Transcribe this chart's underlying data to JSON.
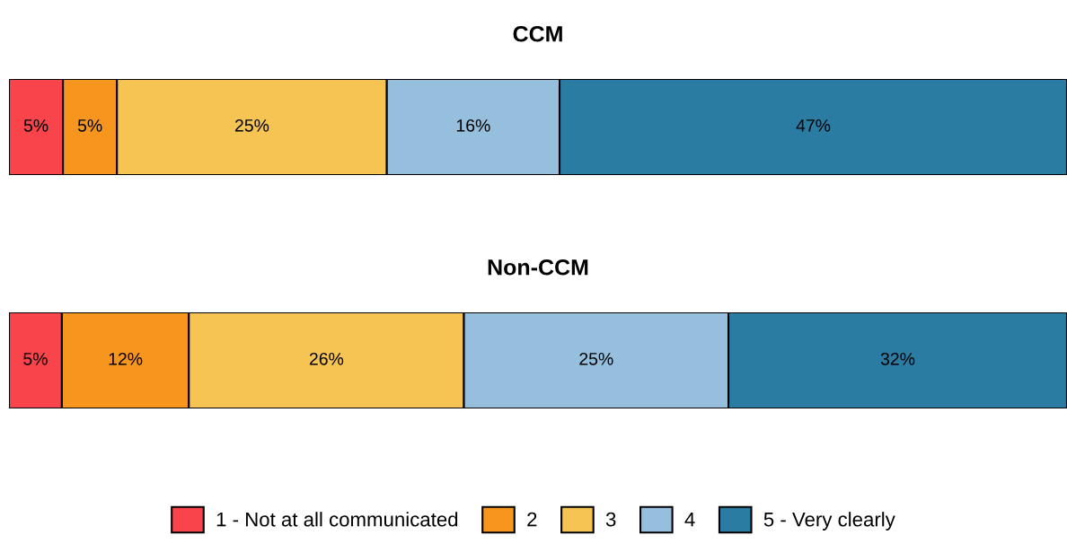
{
  "chart_data": [
    {
      "type": "bar",
      "title": "CCM",
      "stacked": true,
      "orientation": "horizontal",
      "categories": [
        null
      ],
      "tick_labels": false,
      "series": [
        {
          "color": "#f8444a",
          "values": [
            5
          ],
          "value_labels": [
            "5%"
          ]
        },
        {
          "color": "#f7961f",
          "values": [
            5
          ],
          "value_labels": [
            "5%"
          ]
        },
        {
          "color": "#f6c453",
          "values": [
            25
          ],
          "value_labels": [
            "25%"
          ]
        },
        {
          "color": "#95bfdd",
          "values": [
            16
          ],
          "value_labels": [
            "16%"
          ]
        },
        {
          "color": "#2a7ca3",
          "values": [
            47
          ],
          "value_labels": [
            "47%"
          ]
        }
      ]
    },
    {
      "type": "bar",
      "title": "Non-CCM",
      "stacked": true,
      "orientation": "horizontal",
      "categories": [
        null
      ],
      "tick_labels": false,
      "legend": "bottom",
      "series": [
        {
          "name": "1 - Not at all communicated",
          "color": "#f8444a",
          "values": [
            5
          ],
          "value_labels": [
            "5%"
          ]
        },
        {
          "name": "2",
          "color": "#f7961f",
          "values": [
            12
          ],
          "value_labels": [
            "12%"
          ]
        },
        {
          "name": "3",
          "color": "#f6c453",
          "values": [
            26
          ],
          "value_labels": [
            "26%"
          ]
        },
        {
          "name": "4",
          "color": "#95bfdd",
          "values": [
            25
          ],
          "value_labels": [
            "25%"
          ]
        },
        {
          "name": "5 - Very clearly",
          "color": "#2a7ca3",
          "values": [
            32
          ],
          "value_labels": [
            "32%"
          ]
        }
      ]
    }
  ]
}
